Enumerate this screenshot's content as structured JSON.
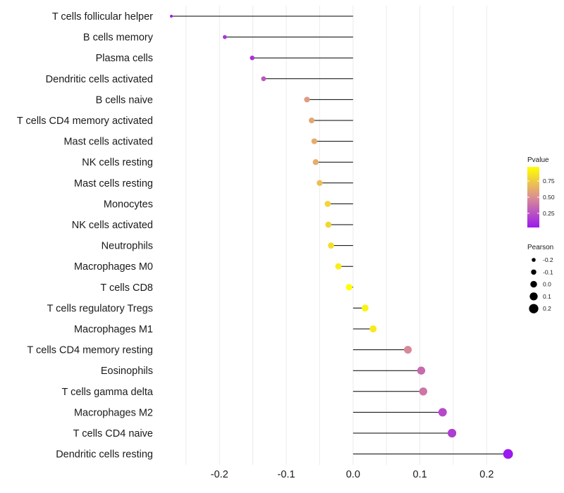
{
  "chart_data": {
    "type": "lollipop",
    "title": "",
    "xlabel": "",
    "ylabel": "",
    "xlim": [
      -0.29,
      0.245
    ],
    "x_ticks": [
      -0.2,
      -0.1,
      0.0,
      0.1,
      0.2
    ],
    "x_tick_labels": [
      "-0.2",
      "-0.1",
      "0.0",
      "0.1",
      "0.2"
    ],
    "grid": true,
    "categories": [
      "T cells follicular helper",
      "B cells memory",
      "Plasma cells",
      "Dendritic cells activated",
      "B cells naive",
      "T cells CD4 memory activated",
      "Mast cells activated",
      "NK cells resting",
      "Mast cells resting",
      "Monocytes",
      "NK cells activated",
      "Neutrophils",
      "Macrophages M0",
      "T cells CD8",
      "T cells regulatory  Tregs ",
      "Macrophages M1",
      "T cells CD4 memory resting",
      "Eosinophils",
      "T cells gamma delta",
      "Macrophages M2",
      "T cells CD4 naive",
      "Dendritic cells resting"
    ],
    "pearson": [
      -0.272,
      -0.192,
      -0.151,
      -0.134,
      -0.069,
      -0.062,
      -0.058,
      -0.056,
      -0.05,
      -0.038,
      -0.037,
      -0.033,
      -0.022,
      -0.006,
      0.018,
      0.03,
      0.082,
      0.102,
      0.105,
      0.134,
      0.148,
      0.232
    ],
    "pvalue": [
      0.05,
      0.15,
      0.12,
      0.27,
      0.55,
      0.6,
      0.62,
      0.63,
      0.7,
      0.8,
      0.8,
      0.83,
      0.9,
      0.97,
      0.92,
      0.88,
      0.47,
      0.35,
      0.4,
      0.22,
      0.17,
      0.03
    ],
    "color_legend": {
      "title": "Pvalue",
      "ticks": [
        0.25,
        0.5,
        0.75
      ],
      "tick_labels": [
        "0.25",
        "0.50",
        "0.75"
      ],
      "range": [
        0.03,
        0.97
      ],
      "low_color": "#9b1aed",
      "mid_color": "#db8f93",
      "high_color": "#ffff00"
    },
    "size_legend": {
      "title": "Pearson",
      "values": [
        -0.2,
        -0.1,
        0.0,
        0.1,
        0.2
      ],
      "labels": [
        "-0.2",
        "-0.1",
        "0.0",
        "0.1",
        "0.2"
      ]
    },
    "legend_position": "right"
  }
}
